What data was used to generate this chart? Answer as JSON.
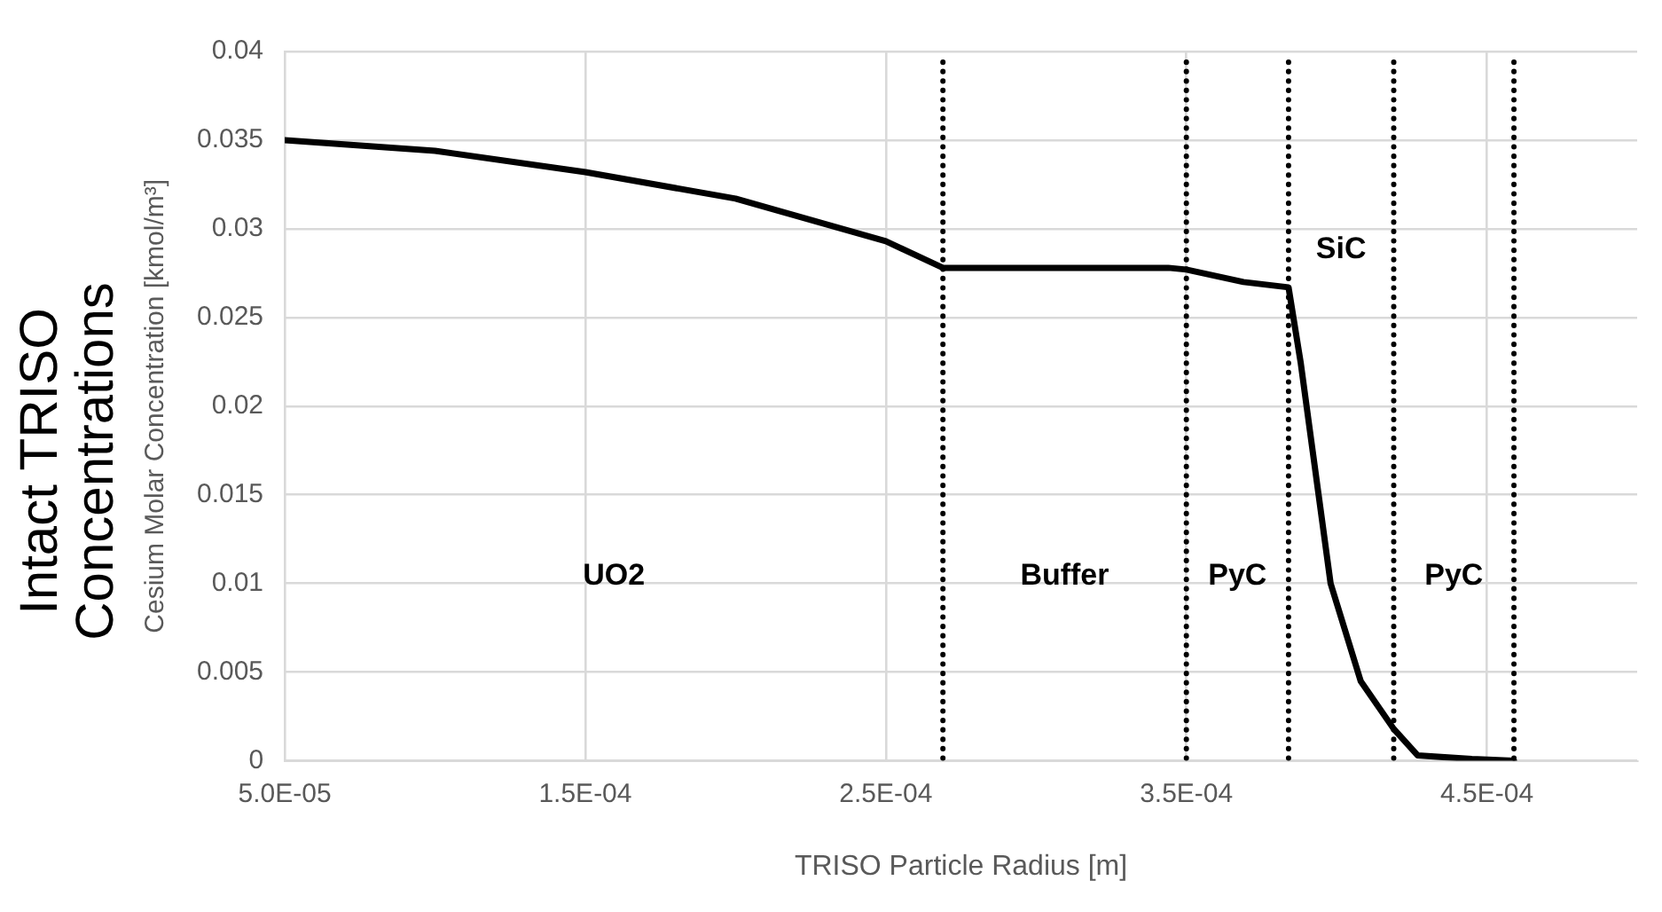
{
  "chart_data": {
    "type": "line",
    "title": "Intact TRISO Concentrations",
    "xlabel": "TRISO Particle Radius [m]",
    "ylabel": "Cesium Molar Concentration [kmol/m³]",
    "x": [
      5e-05,
      0.0001,
      0.00015,
      0.0002,
      0.00025,
      0.000269,
      0.000344,
      0.00035,
      0.000369,
      0.000384,
      0.000388,
      0.000394,
      0.000398,
      0.000408,
      0.000419,
      0.000427,
      0.000445,
      0.000459
    ],
    "series": [
      {
        "color": "#000000",
        "values": [
          0.035,
          0.0344,
          0.0332,
          0.0317,
          0.0293,
          0.0278,
          0.0278,
          0.0277,
          0.027,
          0.0267,
          0.0225,
          0.015,
          0.01,
          0.0045,
          0.0018,
          0.0003,
          0.0001,
          0.0
        ]
      }
    ],
    "xlim": [
      5e-05,
      0.0005
    ],
    "xticks": [
      {
        "value": 5e-05,
        "label": "5.0E-05"
      },
      {
        "value": 0.00015,
        "label": "1.5E-04"
      },
      {
        "value": 0.00025,
        "label": "2.5E-04"
      },
      {
        "value": 0.00035,
        "label": "3.5E-04"
      },
      {
        "value": 0.00045,
        "label": "4.5E-04"
      }
    ],
    "ylim": [
      0,
      0.04
    ],
    "yticks": [
      0,
      0.005,
      0.01,
      0.015,
      0.02,
      0.025,
      0.03,
      0.035,
      0.04
    ],
    "grid": true,
    "legend": false,
    "marker": "none",
    "line_style": "solid",
    "ref_lines": [
      {
        "axis": "x",
        "value": 0.000269,
        "color": "#000000",
        "line_style": "dotted"
      },
      {
        "axis": "x",
        "value": 0.00035,
        "color": "#000000",
        "line_style": "dotted"
      },
      {
        "axis": "x",
        "value": 0.000384,
        "color": "#000000",
        "line_style": "dotted"
      },
      {
        "axis": "x",
        "value": 0.000419,
        "color": "#000000",
        "line_style": "dotted"
      },
      {
        "axis": "x",
        "value": 0.000459,
        "color": "#000000",
        "line_style": "dotted"
      }
    ],
    "annotations": [
      "UO2",
      "Buffer",
      "PyC",
      "SiC",
      "PyC"
    ]
  }
}
